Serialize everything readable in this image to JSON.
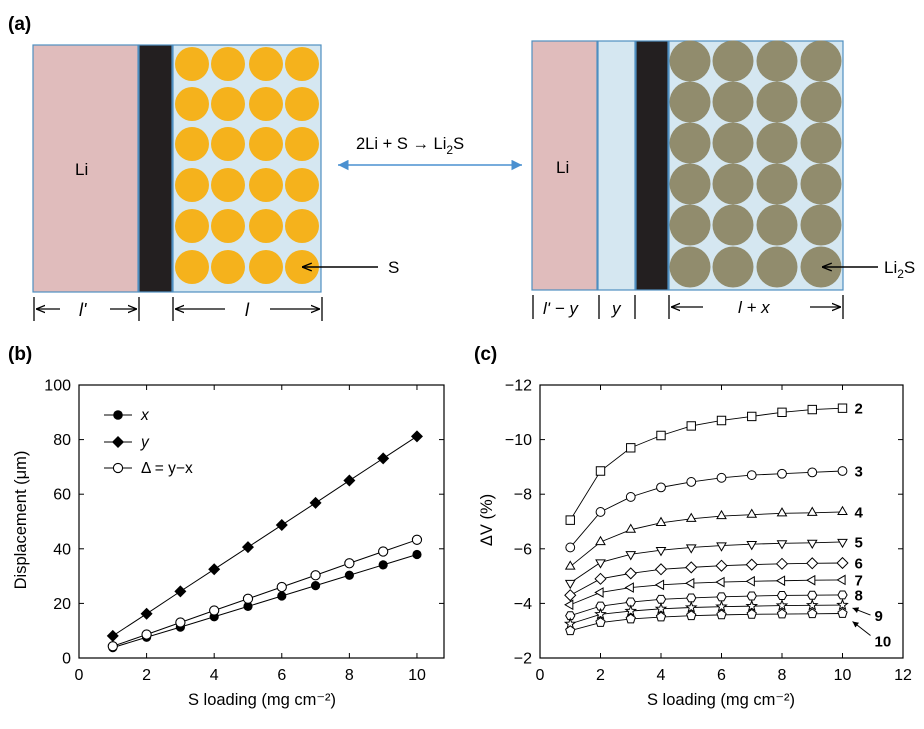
{
  "panel_a": {
    "label": "(a)",
    "reaction": {
      "lhs": "2Li + S",
      "arrow": "→",
      "rhs_main": "Li",
      "rhs_sub": "2",
      "rhs_end": "S"
    },
    "left_cell": {
      "li_label": "Li",
      "particle_label": "S",
      "dim_left": "l'",
      "dim_right": "l"
    },
    "right_cell": {
      "li_label": "Li",
      "particle_label_main": "Li",
      "particle_label_sub": "2",
      "particle_label_end": "S",
      "dim_1": "l' − y",
      "dim_2": "y",
      "dim_3": "l + x"
    },
    "colors": {
      "lithium": "#e0bcbc",
      "separator": "#231f20",
      "electrolyte": "#d5e7f1",
      "sulfur": "#f5b21c",
      "li2s": "#918c6d",
      "border": "#4f8fc0",
      "arrow": "#4a90d0"
    }
  },
  "panel_b": {
    "label": "(b)",
    "legend": [
      {
        "name": "x",
        "marker": "filled-circle"
      },
      {
        "name": "y",
        "marker": "filled-diamond"
      },
      {
        "name": "Δ = y−x",
        "marker": "open-circle"
      }
    ]
  },
  "panel_c": {
    "label": "(c)"
  },
  "chart_data": [
    {
      "type": "line",
      "xlabel": "S loading (mg cm⁻²)",
      "ylabel": "Displacement (μm)",
      "xlim": [
        0,
        10.8
      ],
      "ylim": [
        0,
        100
      ],
      "xticks": [
        0,
        2,
        4,
        6,
        8,
        10
      ],
      "yticks": [
        0,
        20,
        40,
        60,
        80,
        100
      ],
      "x": [
        1,
        2,
        3,
        4,
        5,
        6,
        7,
        8,
        9,
        10
      ],
      "series": [
        {
          "name": "x",
          "marker": "filled-circle",
          "values": [
            3.8,
            7.6,
            11.3,
            15.1,
            18.9,
            22.7,
            26.5,
            30.3,
            34.1,
            37.9
          ]
        },
        {
          "name": "y",
          "marker": "filled-diamond",
          "values": [
            8.1,
            16.2,
            24.4,
            32.5,
            40.6,
            48.7,
            56.8,
            65.0,
            73.1,
            81.2
          ]
        },
        {
          "name": "Δ = y−x",
          "marker": "open-circle",
          "values": [
            4.3,
            8.6,
            13.0,
            17.4,
            21.7,
            26.0,
            30.3,
            34.7,
            39.0,
            43.3
          ]
        }
      ]
    },
    {
      "type": "line",
      "xlabel": "S loading (mg cm⁻²)",
      "ylabel": "ΔV (%)",
      "y_inverted": true,
      "xlim": [
        0,
        12
      ],
      "ylim": [
        -2,
        -12
      ],
      "xticks": [
        0,
        2,
        4,
        6,
        8,
        10,
        12
      ],
      "yticks": [
        -2,
        -4,
        -6,
        -8,
        -10,
        -12
      ],
      "x": [
        1,
        2,
        3,
        4,
        5,
        6,
        7,
        8,
        9,
        10
      ],
      "series": [
        {
          "name": "2",
          "marker": "square",
          "values": [
            -7.05,
            -8.85,
            -9.7,
            -10.15,
            -10.5,
            -10.7,
            -10.85,
            -11.0,
            -11.1,
            -11.15
          ]
        },
        {
          "name": "3",
          "marker": "circle",
          "values": [
            -6.05,
            -7.35,
            -7.9,
            -8.25,
            -8.45,
            -8.6,
            -8.7,
            -8.75,
            -8.8,
            -8.85
          ]
        },
        {
          "name": "4",
          "marker": "triangle-up",
          "values": [
            -5.35,
            -6.25,
            -6.7,
            -6.95,
            -7.1,
            -7.2,
            -7.25,
            -7.3,
            -7.32,
            -7.35
          ]
        },
        {
          "name": "5",
          "marker": "triangle-down",
          "values": [
            -4.75,
            -5.5,
            -5.8,
            -5.95,
            -6.05,
            -6.12,
            -6.17,
            -6.2,
            -6.22,
            -6.25
          ]
        },
        {
          "name": "6",
          "marker": "diamond",
          "values": [
            -4.3,
            -4.9,
            -5.1,
            -5.25,
            -5.32,
            -5.38,
            -5.42,
            -5.45,
            -5.47,
            -5.48
          ]
        },
        {
          "name": "7",
          "marker": "triangle-left",
          "values": [
            -3.95,
            -4.4,
            -4.58,
            -4.68,
            -4.74,
            -4.78,
            -4.81,
            -4.83,
            -4.85,
            -4.86
          ]
        },
        {
          "name": "8",
          "marker": "hexagon",
          "values": [
            -3.55,
            -3.9,
            -4.05,
            -4.15,
            -4.2,
            -4.24,
            -4.27,
            -4.29,
            -4.3,
            -4.31
          ]
        },
        {
          "name": "9",
          "marker": "star",
          "values": [
            -3.25,
            -3.6,
            -3.72,
            -3.8,
            -3.85,
            -3.88,
            -3.9,
            -3.92,
            -3.93,
            -3.94
          ]
        },
        {
          "name": "10",
          "marker": "pentagon",
          "values": [
            -3.0,
            -3.3,
            -3.43,
            -3.5,
            -3.55,
            -3.58,
            -3.6,
            -3.61,
            -3.62,
            -3.63
          ]
        }
      ]
    }
  ]
}
